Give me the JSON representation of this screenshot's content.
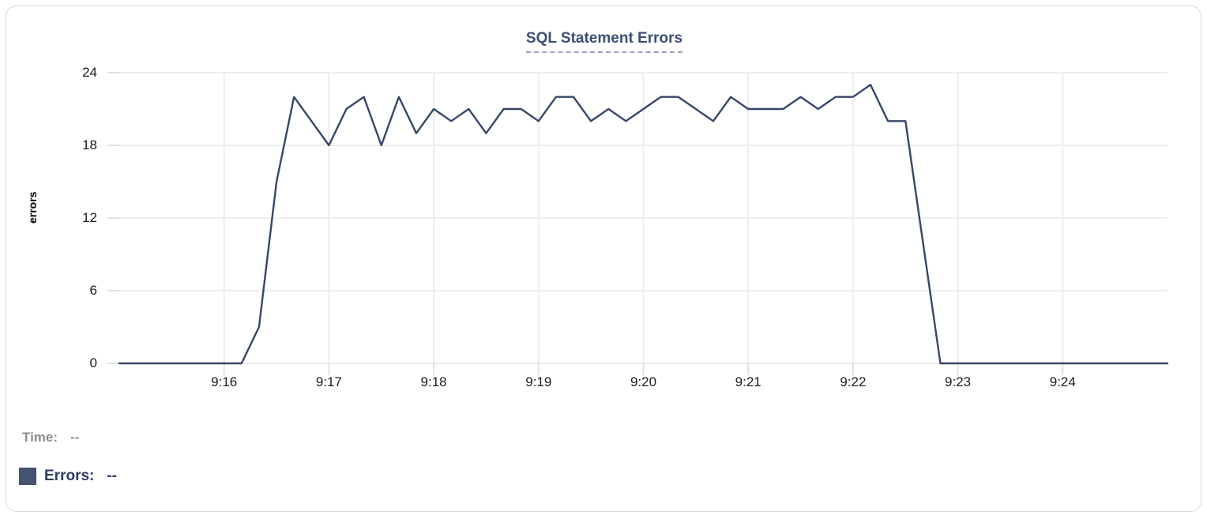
{
  "chart_data": {
    "type": "line",
    "title": "SQL Statement Errors",
    "xlabel": "",
    "ylabel": "errors",
    "ylim": [
      0,
      24
    ],
    "y_ticks": [
      0,
      6,
      12,
      18,
      24
    ],
    "x_tick_labels": [
      "9:16",
      "9:17",
      "9:18",
      "9:19",
      "9:20",
      "9:21",
      "9:22",
      "9:23",
      "9:24"
    ],
    "x_range": [
      "9:15:00",
      "9:25:00"
    ],
    "grid": true,
    "legend_position": "bottom-left",
    "series": [
      {
        "name": "Errors",
        "color": "#37476b",
        "start_time": "9:15:00",
        "interval_seconds": 10,
        "values": [
          0,
          0,
          0,
          0,
          0,
          0,
          0,
          0,
          3,
          15,
          22,
          20,
          18,
          21,
          22,
          18,
          22,
          19,
          21,
          20,
          21,
          19,
          21,
          21,
          20,
          22,
          22,
          20,
          21,
          20,
          21,
          22,
          22,
          21,
          20,
          22,
          21,
          21,
          21,
          22,
          21,
          22,
          22,
          23,
          20,
          20,
          10,
          0,
          0,
          0,
          0,
          0,
          0,
          0,
          0,
          0,
          0,
          0,
          0,
          0,
          0
        ]
      }
    ]
  },
  "legend": {
    "rows": [
      {
        "label": "Time:",
        "value": "--"
      },
      {
        "label": "Errors:",
        "value": "--",
        "swatch_color": "#45536e"
      }
    ]
  },
  "colors": {
    "line": "#37476b",
    "swatch": "#45536e",
    "title": "#3d4e74",
    "title_underline": "#9aa4b6",
    "gridline": "#ededed",
    "tick": "#e2e2e2",
    "axis_text": "#1c1c1c",
    "legend_gray": "#8d8d8d",
    "legend_navy": "#2c3c62",
    "card_border": "#d9d9d9"
  }
}
